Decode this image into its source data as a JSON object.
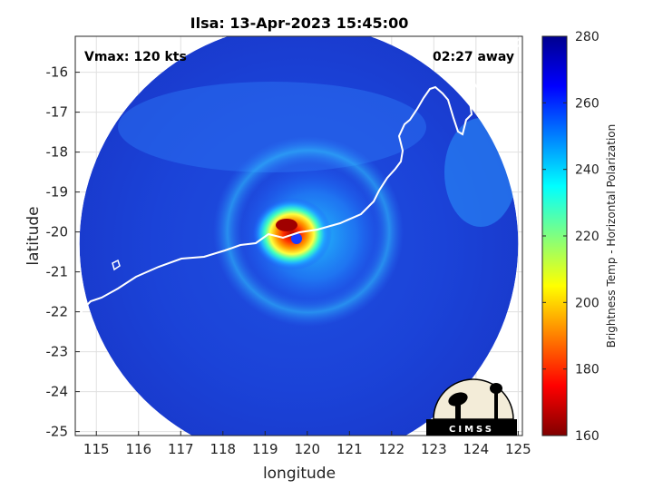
{
  "chart_data": {
    "type": "heatmap",
    "title": "Ilsa: 13-Apr-2023 15:45:00",
    "xlabel": "longitude",
    "ylabel": "latitude",
    "xlim": [
      114.5,
      125.1
    ],
    "ylim": [
      -25.1,
      -15.1
    ],
    "x_ticks": [
      115,
      116,
      117,
      118,
      119,
      120,
      121,
      122,
      123,
      124,
      125
    ],
    "y_ticks": [
      -16,
      -17,
      -18,
      -19,
      -20,
      -21,
      -22,
      -23,
      -24,
      -25
    ],
    "grid": true,
    "colorbar": {
      "label": "Brightness Temp - Horizontal Polarization",
      "min": 160,
      "max": 280,
      "ticks": [
        280,
        260,
        240,
        220,
        200,
        180,
        160
      ],
      "colormap": [
        "#800000",
        "#ff0000",
        "#ff8000",
        "#ffff00",
        "#80ff80",
        "#00ffff",
        "#0080ff",
        "#0000ff",
        "#00008f"
      ]
    },
    "storm": {
      "name": "Ilsa",
      "center_lon": 119.6,
      "center_lat": -20.1,
      "eye_lon": 119.7,
      "eye_lat": -20.15,
      "min_brightness_temp": 168
    },
    "swath": {
      "center_lon": 119.8,
      "center_lat": -20.3,
      "radius_deg": 5.2,
      "background_temp": 268
    },
    "annotations": {
      "vmax": "Vmax: 120 kts",
      "time_away": "02:27 away"
    },
    "logo_text": "CIMSS"
  }
}
